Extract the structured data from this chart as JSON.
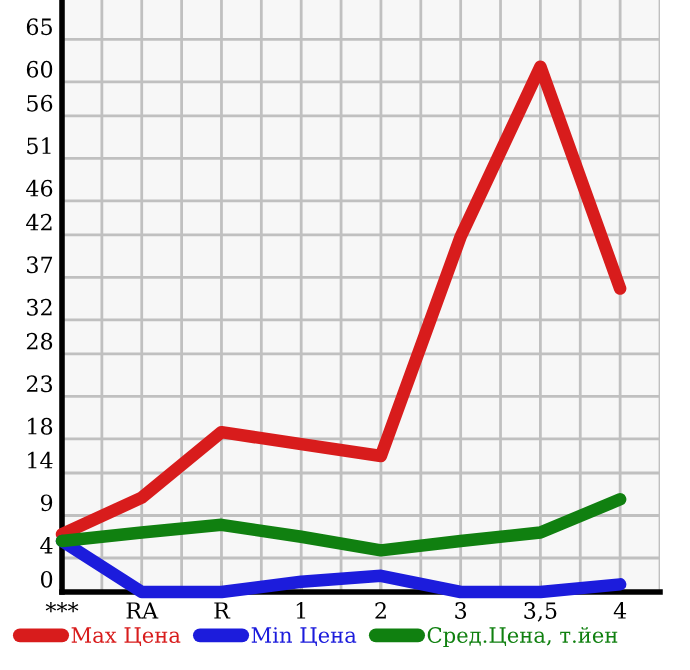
{
  "chart_data": {
    "type": "line",
    "categories": [
      "***",
      "RA",
      "R",
      "1",
      "2",
      "3",
      "3,5",
      "4"
    ],
    "series": [
      {
        "name": "Max Цена",
        "color": "#d81c1c",
        "values": [
          6.8,
          11.1,
          18.8,
          17.4,
          16.0,
          41.8,
          61.8,
          35.7
        ]
      },
      {
        "name": "Min Цена",
        "color": "#1c1cdc",
        "values": [
          6.0,
          0,
          0,
          1.2,
          1.9,
          0,
          0,
          0.9
        ]
      },
      {
        "name": "Сред.Цена, т.йен",
        "color": "#108010",
        "values": [
          6.0,
          7.0,
          7.9,
          6.5,
          4.9,
          6.0,
          7.0,
          10.9
        ]
      }
    ],
    "ylim": [
      0,
      69.64
    ],
    "yticks": [
      0,
      4,
      9,
      14,
      18,
      23,
      28,
      32,
      37,
      42,
      46,
      51,
      56,
      60,
      65
    ],
    "grid": true,
    "legend": "bottom",
    "marker": "none",
    "line_style": "solid"
  }
}
